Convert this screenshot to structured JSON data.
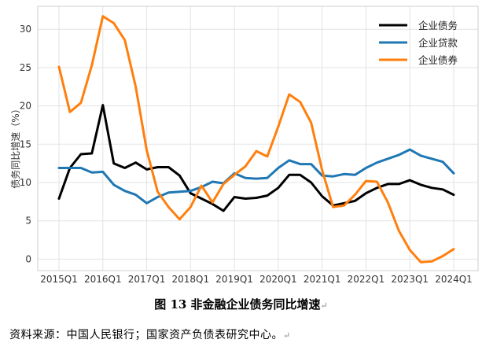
{
  "chart_data": {
    "type": "line",
    "ylabel": "债务同比增速（%）",
    "ylim": [
      -1.5,
      33
    ],
    "yticks": [
      0,
      5,
      10,
      15,
      20,
      25,
      30
    ],
    "grid": true,
    "legend_position": "top-right",
    "x_tick_labels": [
      "2015Q1",
      "2016Q1",
      "2017Q1",
      "2018Q1",
      "2019Q1",
      "2020Q1",
      "2021Q1",
      "2022Q1",
      "2023Q1",
      "2024Q1"
    ],
    "x": [
      "2015Q1",
      "2015Q2",
      "2015Q3",
      "2015Q4",
      "2016Q1",
      "2016Q2",
      "2016Q3",
      "2016Q4",
      "2017Q1",
      "2017Q2",
      "2017Q3",
      "2017Q4",
      "2018Q1",
      "2018Q2",
      "2018Q3",
      "2018Q4",
      "2019Q1",
      "2019Q2",
      "2019Q3",
      "2019Q4",
      "2020Q1",
      "2020Q2",
      "2020Q3",
      "2020Q4",
      "2021Q1",
      "2021Q2",
      "2021Q3",
      "2021Q4",
      "2022Q1",
      "2022Q2",
      "2022Q3",
      "2022Q4",
      "2023Q1",
      "2023Q2",
      "2023Q3",
      "2023Q4",
      "2024Q1"
    ],
    "series": [
      {
        "name": "企业债务",
        "color": "#000000",
        "values": [
          7.9,
          11.9,
          13.7,
          13.8,
          20.1,
          12.5,
          11.9,
          12.6,
          11.7,
          12.0,
          12.0,
          10.9,
          8.6,
          7.9,
          7.2,
          6.3,
          8.1,
          7.9,
          8.0,
          8.3,
          9.3,
          11.0,
          11.0,
          10.0,
          8.2,
          7.0,
          7.3,
          7.6,
          8.6,
          9.3,
          9.8,
          9.8,
          10.3,
          9.7,
          9.3,
          9.1,
          8.4
        ]
      },
      {
        "name": "企业贷款",
        "color": "#1f77b4",
        "values": [
          11.9,
          11.9,
          11.9,
          11.3,
          11.4,
          9.7,
          8.9,
          8.4,
          7.3,
          8.1,
          8.7,
          8.8,
          8.9,
          9.4,
          10.1,
          9.9,
          11.2,
          10.6,
          10.5,
          10.6,
          11.9,
          12.9,
          12.4,
          12.4,
          10.9,
          10.8,
          11.1,
          11.0,
          11.9,
          12.6,
          13.1,
          13.6,
          14.3,
          13.5,
          13.1,
          12.7,
          11.2
        ]
      },
      {
        "name": "企业债券",
        "color": "#ff7f0e",
        "values": [
          25.1,
          19.2,
          20.4,
          25.3,
          31.7,
          30.8,
          28.6,
          22.5,
          14.2,
          8.8,
          6.8,
          5.2,
          6.8,
          9.6,
          7.4,
          9.8,
          11.0,
          12.1,
          14.1,
          13.4,
          17.3,
          21.5,
          20.5,
          17.8,
          11.6,
          6.8,
          7.0,
          8.4,
          10.2,
          10.1,
          7.4,
          3.7,
          1.2,
          -0.4,
          -0.3,
          0.4,
          1.3
        ]
      }
    ]
  },
  "caption": "图 13 非金融企业债务同比增速",
  "source": "资料来源：中国人民银行；国家资产负债表研究中心。"
}
